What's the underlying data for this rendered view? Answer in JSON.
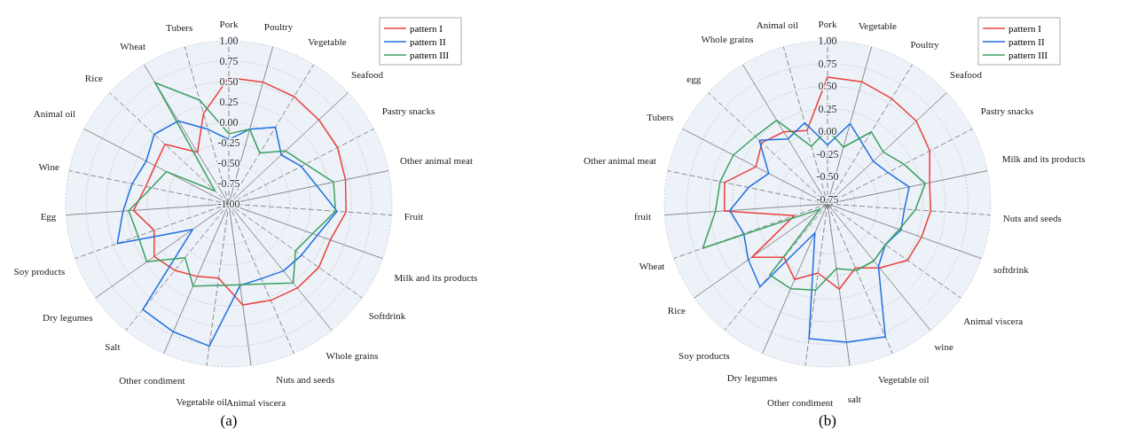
{
  "chart_data": [
    {
      "type": "radar",
      "title": "(a)",
      "categories": [
        "Pork",
        "Poultry",
        "Vegetable",
        "Seafood",
        "Pastry snacks",
        "Other animal meat",
        "Fruit",
        "Milk and its products",
        "Softdrink",
        "Whole grains",
        "Nuts and seeds",
        "Animal viscera",
        "Vegetable oil",
        "Other condiment",
        "Salt",
        "Dry legumes",
        "Soy products",
        "Egg",
        "Wine",
        "Animal oil",
        "Rice",
        "Wheat",
        "Tubers"
      ],
      "series": [
        {
          "name": "pattern I",
          "color": "#e8413c",
          "values": [
            0.55,
            0.55,
            0.54,
            0.51,
            0.5,
            0.46,
            0.44,
            0.32,
            0.35,
            0.33,
            0.29,
            0.25,
            -0.08,
            -0.03,
            0.05,
            0.12,
            -0.03,
            0.17,
            0.04,
            0.02,
            0.07,
            -0.26,
            0.15
          ]
        },
        {
          "name": "pattern II",
          "color": "#1f6fe0",
          "values": [
            -0.21,
            -0.05,
            0.1,
            -0.12,
            0.0,
            0.1,
            0.33,
            0.15,
            0.09,
            0.06,
            0.0,
            0.01,
            0.76,
            0.71,
            0.67,
            -0.46,
            0.45,
            0.3,
            0.21,
            0.14,
            0.25,
            0.19,
            -0.05
          ]
        },
        {
          "name": "pattern III",
          "color": "#3aa060",
          "values": [
            -0.14,
            -0.05,
            -0.27,
            -0.05,
            0.06,
            0.31,
            0.31,
            0.09,
            0.0,
            0.25,
            0.07,
            0.0,
            0.01,
            0.1,
            -0.15,
            0.23,
            0.18,
            0.23,
            -0.03,
            -0.14,
            -0.77,
            0.74,
            0.32
          ]
        }
      ],
      "ylim": [
        -1,
        1
      ],
      "yticks": [
        {
          "value": -1,
          "label": "-1.00"
        },
        {
          "value": -0.75,
          "label": "-0.75"
        },
        {
          "value": -0.5,
          "label": "-0.50"
        },
        {
          "value": -0.25,
          "label": "-0.25"
        },
        {
          "value": 0,
          "label": "0.00"
        },
        {
          "value": 0.25,
          "label": "0.25"
        },
        {
          "value": 0.5,
          "label": "0.50"
        },
        {
          "value": 0.75,
          "label": "0.75"
        },
        {
          "value": 1,
          "label": "1.00"
        }
      ],
      "grid": true,
      "legend": "top right"
    },
    {
      "type": "radar",
      "title": "(b)",
      "categories": [
        "Pork",
        "Vegetable",
        "Poultry",
        "Seafood",
        "Pastry snacks",
        "Milk and its products",
        "Nuts and seeds",
        "softdrink",
        "Animal viscera",
        "wine",
        "Vegetable oil",
        "salt",
        "Other condiment",
        "Dry legumes",
        "Soy products",
        "Rice",
        "Wheat",
        "fruit",
        "Other animal meat",
        "Tubers",
        "egg",
        "Whole grains",
        "Animal oil"
      ],
      "series": [
        {
          "name": "pattern I",
          "color": "#e8413c",
          "values": [
            0.6,
            0.6,
            0.56,
            0.54,
            0.47,
            0.35,
            0.34,
            0.3,
            0.28,
            0.11,
            -0.03,
            0.15,
            -0.03,
            0.11,
            -0.04,
            0.22,
            -0.41,
            0.34,
            0.36,
            0.09,
            0.19,
            0.13,
            0.04
          ]
        },
        {
          "name": "pattern II",
          "color": "#1f6fe0",
          "values": [
            -0.15,
            0.12,
            -0.04,
            -0.11,
            -0.05,
            0.12,
            0.05,
            0.06,
            -0.02,
            0.09,
            0.8,
            0.74,
            0.7,
            -0.45,
            0.38,
            0.27,
            0.18,
            0.28,
            0.09,
            -0.07,
            0.23,
            0.04,
            0.13
          ]
        },
        {
          "name": "pattern III",
          "color": "#3aa060",
          "values": [
            0.02,
            -0.15,
            0.13,
            0.04,
            0.15,
            0.3,
            0.17,
            0.04,
            -0.02,
            0.01,
            0.0,
            -0.08,
            0.16,
            0.22,
            0.21,
            -0.7,
            0.66,
            0.44,
            0.41,
            0.37,
            0.29,
            0.28,
            -0.14
          ]
        }
      ],
      "ylim": [
        -0.8,
        1
      ],
      "yticks": [
        {
          "value": -0.75,
          "label": "-0.75"
        },
        {
          "value": -0.5,
          "label": "-0.50"
        },
        {
          "value": -0.25,
          "label": "-0.25"
        },
        {
          "value": 0,
          "label": "0.00"
        },
        {
          "value": 0.25,
          "label": "0.25"
        },
        {
          "value": 0.5,
          "label": "0.50"
        },
        {
          "value": 0.75,
          "label": "0.75"
        },
        {
          "value": 1,
          "label": "1.00"
        }
      ],
      "grid": true,
      "legend": "top right"
    }
  ]
}
